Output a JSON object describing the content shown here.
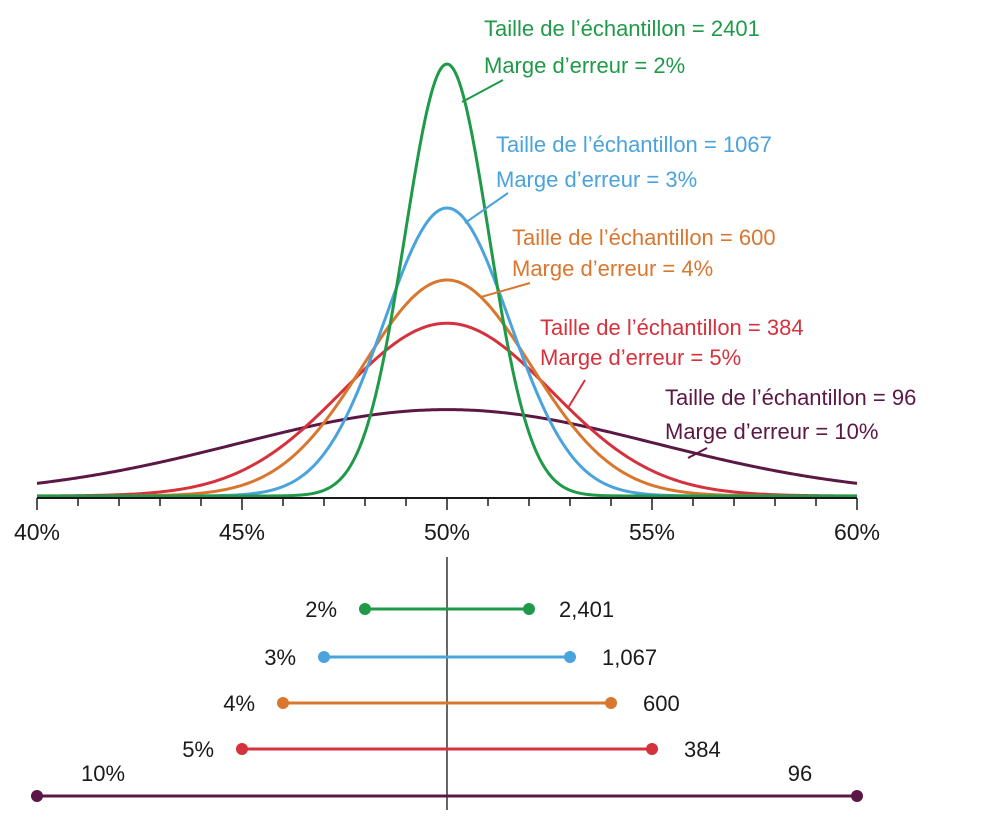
{
  "chart_data": {
    "type": "line",
    "title": "",
    "xlabel": "",
    "ylabel": "",
    "x_ticks": [
      "40%",
      "45%",
      "50%",
      "55%",
      "60%"
    ],
    "xlim": [
      40,
      60
    ],
    "x_minor_step": 1,
    "series": [
      {
        "sample_size": 2401,
        "margin_of_error": 2,
        "color": "#1f9a48",
        "label_size": "Taille de l’échantillon = 2401",
        "label_margin": "Marge d’erreur = 2%",
        "ci_left_label": "2%",
        "ci_right_label": "2,401"
      },
      {
        "sample_size": 1067,
        "margin_of_error": 3,
        "color": "#4aa3dc",
        "label_size": "Taille de l’échantillon  = 1067",
        "label_margin": "Marge d’erreur = 3%",
        "ci_left_label": "3%",
        "ci_right_label": "1,067"
      },
      {
        "sample_size": 600,
        "margin_of_error": 4,
        "color": "#d9772f",
        "label_size": "Taille de l’échantillon = 600",
        "label_margin": "Marge d’erreur = 4%",
        "ci_left_label": "4%",
        "ci_right_label": "600"
      },
      {
        "sample_size": 384,
        "margin_of_error": 5,
        "color": "#d4323c",
        "label_size": "Taille de l’échantillon = 384",
        "label_margin": "Marge d’erreur = 5%",
        "ci_left_label": "5%",
        "ci_right_label": "384"
      },
      {
        "sample_size": 96,
        "margin_of_error": 10,
        "color": "#5c1845",
        "label_size": "Taille de l’échantillon = 96",
        "label_margin": "Marge d’erreur = 10%",
        "ci_left_label": "10%",
        "ci_right_label": "96"
      }
    ],
    "center_value": 50,
    "grid": false,
    "legend": "none"
  }
}
